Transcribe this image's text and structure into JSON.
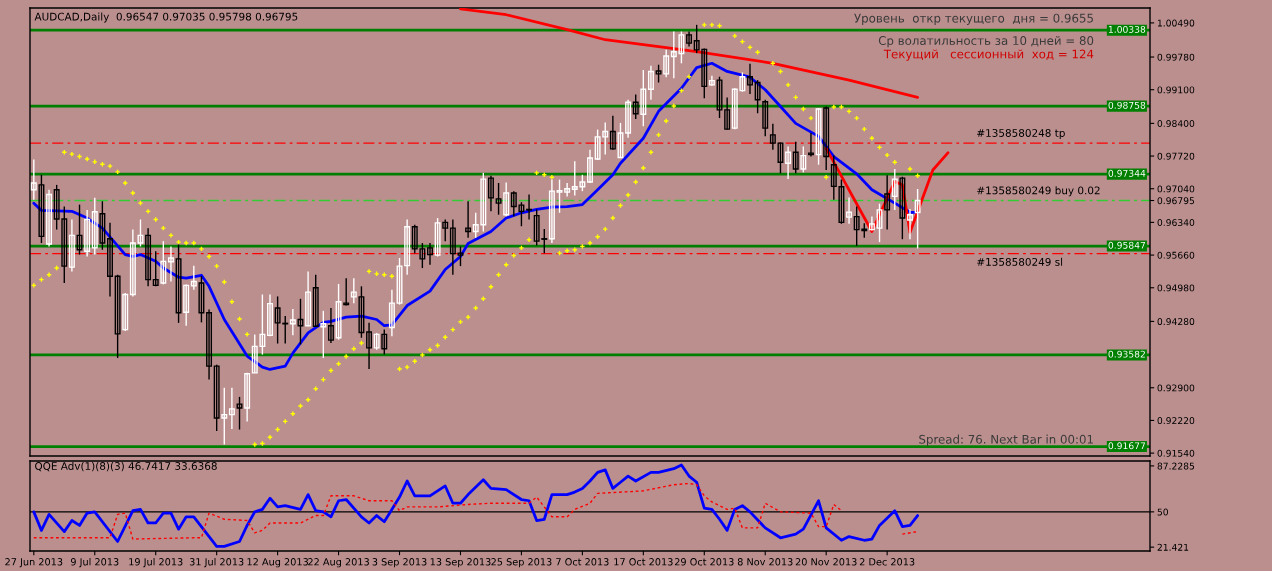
{
  "chart_data": [
    {
      "type": "candlestick",
      "title": "AUDCAD,Daily  0.96547 0.97035 0.95798 0.96795",
      "tick_labels": "y",
      "categories": [
        null,
        null,
        null,
        null,
        null,
        null,
        null,
        null,
        null,
        null,
        null,
        null,
        null,
        null,
        null,
        null,
        null,
        null,
        null,
        null,
        null,
        null,
        null,
        null,
        null,
        null,
        null,
        null,
        null,
        null,
        null,
        null,
        null,
        null,
        null,
        null,
        null,
        null,
        null,
        null,
        null,
        null,
        null,
        null,
        null,
        null,
        null,
        null,
        null,
        null,
        null,
        null,
        null,
        null,
        null,
        null,
        null,
        null,
        null,
        null,
        null,
        null,
        null,
        null,
        null,
        null,
        null,
        null,
        null,
        null,
        null,
        null,
        null,
        null,
        null,
        null,
        null,
        null,
        null,
        null,
        null,
        null,
        null,
        null,
        null,
        null,
        null,
        null,
        null,
        null,
        null,
        null,
        null,
        null,
        null,
        null,
        null,
        null,
        null,
        null,
        null,
        null,
        null,
        null,
        null,
        null,
        null,
        null,
        null,
        null,
        null,
        null,
        null,
        null,
        null,
        null,
        null,
        null,
        null,
        null,
        null,
        null,
        null,
        null,
        null,
        null,
        null,
        null,
        null,
        null,
        null,
        null,
        null,
        null,
        null,
        null,
        null,
        null,
        null,
        null,
        null,
        null,
        null,
        null,
        null,
        null,
        null
      ],
      "ohlc": [
        [
          0.9702,
          0.9765,
          0.9681,
          0.9716
        ],
        [
          0.9712,
          0.9733,
          0.9591,
          0.9605
        ],
        [
          0.9589,
          0.9702,
          0.9584,
          0.9692
        ],
        [
          0.9702,
          0.9712,
          0.9619,
          0.9641
        ],
        [
          0.9641,
          0.9667,
          0.9508,
          0.9543
        ],
        [
          0.9541,
          0.964,
          0.9532,
          0.9607
        ],
        [
          0.9607,
          0.9671,
          0.9567,
          0.9577
        ],
        [
          0.9574,
          0.966,
          0.9563,
          0.964
        ],
        [
          0.9581,
          0.9685,
          0.9567,
          0.9656
        ],
        [
          0.9652,
          0.9678,
          0.9577,
          0.9591
        ],
        [
          0.96,
          0.9633,
          0.948,
          0.9522
        ],
        [
          0.9522,
          0.9525,
          0.9352,
          0.9402
        ],
        [
          0.9411,
          0.9487,
          0.9408,
          0.9484
        ],
        [
          0.9484,
          0.9619,
          0.948,
          0.9591
        ],
        [
          0.9591,
          0.964,
          0.9584,
          0.9607
        ],
        [
          0.9607,
          0.9622,
          0.9501,
          0.9515
        ],
        [
          0.9515,
          0.9574,
          0.9501,
          0.9503
        ],
        [
          0.9508,
          0.9595,
          0.9505,
          0.9553
        ],
        [
          0.9552,
          0.9584,
          0.9511,
          0.956
        ],
        [
          0.9558,
          0.9588,
          0.9425,
          0.9446
        ],
        [
          0.9447,
          0.9505,
          0.9419,
          0.9503
        ],
        [
          0.9502,
          0.9544,
          0.9494,
          0.9511
        ],
        [
          0.9508,
          0.9522,
          0.9426,
          0.9446
        ],
        [
          0.9446,
          0.9453,
          0.9307,
          0.9335
        ],
        [
          0.9335,
          0.9338,
          0.92,
          0.9227
        ],
        [
          0.9227,
          0.929,
          0.9172,
          0.9234
        ],
        [
          0.9234,
          0.929,
          0.9204,
          0.9246
        ],
        [
          0.9256,
          0.9271,
          0.9203,
          0.9248
        ],
        [
          0.9248,
          0.9321,
          0.922,
          0.9319
        ],
        [
          0.9321,
          0.9401,
          0.9321,
          0.9376
        ],
        [
          0.9376,
          0.9484,
          0.9359,
          0.9401
        ],
        [
          0.9399,
          0.9484,
          0.9397,
          0.9465
        ],
        [
          0.9456,
          0.948,
          0.9382,
          0.9425
        ],
        [
          0.9424,
          0.9439,
          0.9382,
          0.9423
        ],
        [
          0.9423,
          0.9454,
          0.9399,
          0.9431
        ],
        [
          0.9432,
          0.9475,
          0.938,
          0.9419
        ],
        [
          0.9419,
          0.9532,
          0.9418,
          0.9489
        ],
        [
          0.9498,
          0.9525,
          0.9417,
          0.9418
        ],
        [
          0.9417,
          0.945,
          0.9352,
          0.9423
        ],
        [
          0.9419,
          0.9456,
          0.9383,
          0.9389
        ],
        [
          0.9394,
          0.9506,
          0.939,
          0.9469
        ],
        [
          0.9466,
          0.9518,
          0.9461,
          0.9463
        ],
        [
          0.9479,
          0.9518,
          0.9466,
          0.9489
        ],
        [
          0.9479,
          0.9501,
          0.9394,
          0.9405
        ],
        [
          0.9406,
          0.9425,
          0.9329,
          0.9373
        ],
        [
          0.9373,
          0.9404,
          0.9369,
          0.9401
        ],
        [
          0.9401,
          0.9411,
          0.9359,
          0.9371
        ],
        [
          0.9415,
          0.9494,
          0.9397,
          0.9466
        ],
        [
          0.9466,
          0.956,
          0.9463,
          0.9543
        ],
        [
          0.9544,
          0.964,
          0.9525,
          0.9625
        ],
        [
          0.9625,
          0.9629,
          0.957,
          0.9579
        ],
        [
          0.9579,
          0.9591,
          0.9539,
          0.9558
        ],
        [
          0.9581,
          0.9591,
          0.9546,
          0.9567
        ],
        [
          0.9566,
          0.9643,
          0.9563,
          0.9633
        ],
        [
          0.9634,
          0.964,
          0.9595,
          0.9622
        ],
        [
          0.9622,
          0.964,
          0.9525,
          0.9569
        ],
        [
          0.957,
          0.9584,
          0.9543,
          0.9566
        ],
        [
          0.9622,
          0.9678,
          0.9602,
          0.9615
        ],
        [
          0.9615,
          0.9654,
          0.9602,
          0.9629
        ],
        [
          0.9629,
          0.9737,
          0.9615,
          0.9724
        ],
        [
          0.9726,
          0.9731,
          0.9657,
          0.9685
        ],
        [
          0.9683,
          0.9716,
          0.965,
          0.9674
        ],
        [
          0.965,
          0.9717,
          0.9647,
          0.9695
        ],
        [
          0.9695,
          0.9699,
          0.9647,
          0.9667
        ],
        [
          0.967,
          0.9676,
          0.9626,
          0.9657
        ],
        [
          0.9661,
          0.9692,
          0.964,
          0.966
        ],
        [
          0.9648,
          0.9661,
          0.9586,
          0.9595
        ],
        [
          0.96,
          0.962,
          0.957,
          0.9599
        ],
        [
          0.96,
          0.9723,
          0.9591,
          0.9699
        ],
        [
          0.9697,
          0.9723,
          0.9654,
          0.97
        ],
        [
          0.9697,
          0.9716,
          0.9688,
          0.9704
        ],
        [
          0.9703,
          0.9761,
          0.969,
          0.9708
        ],
        [
          0.9708,
          0.9733,
          0.9699,
          0.9718
        ],
        [
          0.9718,
          0.9785,
          0.9716,
          0.9768
        ],
        [
          0.9766,
          0.9827,
          0.9764,
          0.9812
        ],
        [
          0.9812,
          0.9842,
          0.9775,
          0.9823
        ],
        [
          0.9823,
          0.9856,
          0.9785,
          0.9787
        ],
        [
          0.9769,
          0.9841,
          0.9768,
          0.982
        ],
        [
          0.982,
          0.9889,
          0.981,
          0.9884
        ],
        [
          0.9884,
          0.99,
          0.9849,
          0.986
        ],
        [
          0.9859,
          0.9951,
          0.9834,
          0.9911
        ],
        [
          0.9911,
          0.996,
          0.9889,
          0.9948
        ],
        [
          0.9949,
          0.9962,
          0.9925,
          0.9943
        ],
        [
          0.9943,
          0.9993,
          0.9936,
          0.998
        ],
        [
          0.9979,
          1.0031,
          0.9934,
          0.9989
        ],
        [
          0.9985,
          1.0031,
          0.9965,
          1.0024
        ],
        [
          1.0024,
          1.0031,
          1.0,
          1.0007
        ],
        [
          1.0012,
          1.0045,
          0.9986,
          0.9993
        ],
        [
          0.9994,
          0.9996,
          0.9892,
          0.9917
        ],
        [
          0.992,
          0.9939,
          0.9918,
          0.9929
        ],
        [
          0.993,
          0.9937,
          0.9851,
          0.9868
        ],
        [
          0.9868,
          0.9894,
          0.9827,
          0.9828
        ],
        [
          0.983,
          0.9913,
          0.9828,
          0.9911
        ],
        [
          0.9908,
          0.9946,
          0.9906,
          0.9937
        ],
        [
          0.9937,
          0.9964,
          0.9901,
          0.992
        ],
        [
          0.9925,
          0.993,
          0.9861,
          0.9889
        ],
        [
          0.9885,
          0.9889,
          0.9813,
          0.983
        ],
        [
          0.9816,
          0.9839,
          0.9785,
          0.9799
        ],
        [
          0.9799,
          0.98,
          0.9736,
          0.9759
        ],
        [
          0.9757,
          0.9792,
          0.9724,
          0.978
        ],
        [
          0.978,
          0.9802,
          0.9736,
          0.9745
        ],
        [
          0.9745,
          0.9792,
          0.9738,
          0.9773
        ],
        [
          0.9778,
          0.982,
          0.9771,
          0.9775
        ],
        [
          0.9775,
          0.9872,
          0.9754,
          0.987
        ],
        [
          0.9872,
          0.9875,
          0.9743,
          0.9771
        ],
        [
          0.9754,
          0.9773,
          0.9681,
          0.9709
        ],
        [
          0.9708,
          0.9723,
          0.9631,
          0.9634
        ],
        [
          0.9645,
          0.9686,
          0.9631,
          0.9655
        ],
        [
          0.9646,
          0.9667,
          0.9585,
          0.9619
        ],
        [
          0.962,
          0.9632,
          0.9602,
          0.9617
        ],
        [
          0.9619,
          0.9646,
          0.9617,
          0.9631
        ],
        [
          0.9622,
          0.9673,
          0.9593,
          0.966
        ],
        [
          0.9693,
          0.9732,
          0.9619,
          0.966
        ],
        [
          0.9688,
          0.9745,
          0.966,
          0.9724
        ],
        [
          0.9726,
          0.9729,
          0.9599,
          0.9643
        ],
        [
          0.9639,
          0.9662,
          0.9599,
          0.965
        ],
        [
          0.96547,
          0.97035,
          0.95798,
          0.96795
        ],
        null,
        null,
        null,
        null,
        null,
        null,
        null,
        null,
        null,
        null,
        null,
        null,
        null,
        null,
        null,
        null,
        null,
        null,
        null,
        null,
        null,
        null,
        null,
        null,
        null,
        null,
        null,
        null,
        null,
        null
      ],
      "series": [
        {
          "type": "line",
          "color": "#0000ff",
          "values": [
            0.9674,
            0.9659,
            null,
            null,
            null,
            0.9657,
            null,
            0.9643,
            null,
            0.9622,
            null,
            null,
            0.9567,
            0.9563,
            0.9567,
            null,
            0.9553,
            0.9539,
            null,
            0.952,
            0.9518,
            null,
            0.9524,
            0.9501,
            null,
            0.9432,
            null,
            null,
            0.9356,
            null,
            0.9333,
            0.9328,
            null,
            0.9335,
            0.9362,
            null,
            0.9404,
            null,
            0.9426,
            0.9428,
            null,
            0.9437,
            null,
            0.9439,
            null,
            0.9432,
            0.9419,
            0.9421,
            null,
            0.9461,
            null,
            null,
            0.9491,
            null,
            0.9536,
            null,
            0.9563,
            0.959,
            null,
            null,
            0.9615,
            null,
            0.9643,
            null,
            0.9654,
            null,
            0.9661,
            null,
            0.9666,
            null,
            0.9667,
            null,
            0.9671,
            null,
            0.9702,
            null,
            0.9733,
            0.9757,
            null,
            null,
            0.9809,
            null,
            0.9865,
            null,
            null,
            0.9913,
            null,
            0.9956,
            null,
            0.9965,
            null,
            0.9948,
            null,
            null,
            0.9936,
            null,
            0.991,
            null,
            0.9875,
            null,
            0.984,
            null,
            null,
            0.9813,
            null,
            0.9771,
            null,
            null,
            0.9735,
            null,
            0.9702,
            null,
            null,
            0.9674,
            null,
            0.9655,
            0.9655,
            null,
            null,
            null,
            null,
            null,
            null,
            null,
            null,
            null,
            null,
            null,
            null,
            null,
            null,
            null,
            null,
            null,
            null,
            null,
            null,
            null,
            null,
            null,
            null,
            null,
            null,
            null,
            null,
            null,
            null
          ]
        },
        {
          "type": "line",
          "color": "#ff0000",
          "values": [
            null,
            null,
            null,
            null,
            null,
            null,
            null,
            null,
            null,
            null,
            null,
            null,
            null,
            null,
            null,
            null,
            null,
            null,
            null,
            null,
            null,
            null,
            null,
            null,
            null,
            null,
            null,
            null,
            null,
            null,
            null,
            null,
            null,
            null,
            null,
            null,
            null,
            null,
            null,
            null,
            null,
            null,
            null,
            null,
            null,
            null,
            null,
            null,
            null,
            null,
            null,
            null,
            null,
            null,
            null,
            null,
            1.0078,
            null,
            null,
            null,
            null,
            null,
            1.0066,
            null,
            null,
            null,
            null,
            null,
            null,
            null,
            1.0035,
            null,
            null,
            null,
            null,
            1.0014,
            null,
            1.001,
            null,
            null,
            null,
            null,
            null,
            null,
            null,
            null,
            null,
            0.9989,
            null,
            null,
            null,
            null,
            null,
            null,
            null,
            null,
            null,
            0.9965,
            null,
            null,
            null,
            null,
            null,
            null,
            null,
            null,
            null,
            0.993,
            null,
            null,
            null,
            null,
            null,
            null,
            null,
            null,
            0.9894,
            null,
            null,
            null,
            null,
            null,
            null,
            null,
            null,
            null,
            null,
            null,
            null,
            null,
            null,
            null,
            null,
            null,
            null,
            null,
            null,
            null,
            null,
            null,
            null,
            null,
            null,
            null,
            null,
            null,
            null
          ]
        },
        {
          "type": "line",
          "color": "#ff0000",
          "values": [
            null,
            null,
            null,
            null,
            null,
            null,
            null,
            null,
            null,
            null,
            null,
            null,
            null,
            null,
            null,
            null,
            null,
            null,
            null,
            null,
            null,
            null,
            null,
            null,
            null,
            null,
            null,
            null,
            null,
            null,
            null,
            null,
            null,
            null,
            null,
            null,
            null,
            null,
            null,
            null,
            null,
            null,
            null,
            null,
            null,
            null,
            null,
            null,
            null,
            null,
            null,
            null,
            null,
            null,
            null,
            null,
            null,
            null,
            null,
            null,
            null,
            null,
            null,
            null,
            null,
            null,
            null,
            null,
            null,
            null,
            null,
            null,
            null,
            null,
            null,
            null,
            null,
            null,
            null,
            null,
            null,
            null,
            null,
            null,
            null,
            null,
            null,
            null,
            null,
            null,
            null,
            null,
            null,
            null,
            null,
            null,
            null,
            null,
            null,
            null,
            null,
            null,
            null,
            null,
            0.9788,
            null,
            null,
            null,
            null,
            null,
            0.9615,
            null,
            null,
            0.9719,
            0.9712,
            0.9613,
            null,
            null,
            0.9743,
            null,
            0.9779,
            null,
            null,
            null,
            null,
            null,
            null,
            null,
            null,
            null,
            null,
            null,
            null,
            null,
            null,
            null,
            null,
            null,
            null,
            null,
            null,
            null,
            null,
            null,
            null,
            null,
            null
          ]
        },
        {
          "type": "scatter",
          "color": "#ffff00",
          "marker": "cross",
          "values": [
            0.9503,
            0.9515,
            0.9525,
            0.9539,
            0.978,
            0.9776,
            0.9771,
            0.9766,
            0.976,
            0.9755,
            0.9751,
            0.9739,
            0.9716,
            0.9695,
            0.9674,
            0.9657,
            0.964,
            0.9622,
            0.9607,
            0.9593,
            0.9591,
            0.9591,
            0.9579,
            0.9563,
            0.9543,
            0.951,
            0.9469,
            0.9433,
            0.9401,
            0.9172,
            0.9174,
            0.9187,
            0.9203,
            0.922,
            0.9236,
            0.9252,
            0.9265,
            0.9288,
            0.9307,
            0.9326,
            0.934,
            0.9355,
            0.9371,
            0.9383,
            0.9532,
            0.9527,
            0.9525,
            0.9522,
            0.9329,
            0.9333,
            0.9345,
            0.9358,
            0.9369,
            0.9378,
            0.9395,
            0.9411,
            0.9427,
            0.9437,
            0.9456,
            0.9475,
            0.95,
            0.9525,
            0.9546,
            0.9565,
            0.9581,
            0.9598,
            0.9737,
            0.9733,
            0.9728,
            0.957,
            0.9575,
            0.9577,
            0.9584,
            0.9591,
            0.9604,
            0.962,
            0.9643,
            0.9669,
            0.9691,
            0.9718,
            0.9747,
            0.978,
            0.9816,
            0.9845,
            0.9876,
            0.9908,
            0.9937,
            null,
            1.0045,
            1.0045,
            1.0043,
            null,
            1.0022,
            1.001,
            0.9998,
            0.9988,
            null,
            0.9965,
            0.9948,
            0.992,
            0.9894,
            0.987,
            0.9851,
            null,
            0.9728,
            0.9874,
            0.9874,
            0.9865,
            0.9851,
            0.9828,
            0.9809,
            0.979,
            0.9774,
            0.9759,
            null,
            0.9745,
            0.9731,
            null,
            null,
            null,
            null,
            null,
            null,
            null,
            null,
            null,
            null,
            null,
            null,
            null,
            null,
            null,
            null,
            null,
            null,
            null,
            null,
            null,
            null,
            null,
            null,
            null,
            null,
            null,
            null,
            null,
            null
          ]
        }
      ],
      "ref_lines": [
        {
          "axis": "y",
          "value": 1.00338,
          "label": "1.00338",
          "color": "#008000"
        },
        {
          "axis": "y",
          "value": 0.98758,
          "label": "0.98758",
          "color": "#008000"
        },
        {
          "axis": "y",
          "value": 0.97344,
          "label": "0.97344",
          "color": "#008000"
        },
        {
          "axis": "y",
          "value": 0.95847,
          "label": "0.95847",
          "color": "#008000"
        },
        {
          "axis": "y",
          "value": 0.93582,
          "label": "0.93582",
          "color": "#008000"
        },
        {
          "axis": "y",
          "value": 0.91677,
          "label": "0.91677",
          "color": "#008000"
        },
        {
          "axis": "y",
          "value": 0.9799,
          "label": "#1358580248 tp",
          "color": "#ff0000",
          "line_style": "dashed"
        },
        {
          "axis": "y",
          "value": 0.96795,
          "label": "#1358580249 buy 0.02",
          "color": "#32cd32",
          "line_style": "dashed"
        },
        {
          "axis": "y",
          "value": 0.9569,
          "label": "#1358580249 sl",
          "color": "#ff0000",
          "line_style": "dashed"
        }
      ],
      "annotations": [
        "Уровень  откр текущего  дня = 0.9655",
        "Ср волатильность за 10 дней = 80",
        "Текущий   сессионный  ход = 124",
        "Spread: 76. Next Bar in 00:01"
      ],
      "ylim": [
        0.9148,
        1.008
      ],
      "yticks": [
        {
          "value": 1.0049,
          "label": "1.00490"
        },
        {
          "value": 0.9978,
          "label": "0.99780"
        },
        {
          "value": 0.991,
          "label": "0.99100"
        },
        {
          "value": 0.984,
          "label": "0.98400"
        },
        {
          "value": 0.9772,
          "label": "0.97720"
        },
        {
          "value": 0.9704,
          "label": "0.97040"
        },
        0.96795,
        {
          "value": 0.9634,
          "label": "0.96340"
        },
        {
          "value": 0.9566,
          "label": "0.95660"
        },
        {
          "value": 0.9498,
          "label": "0.94980"
        },
        {
          "value": 0.9428,
          "label": "0.94280"
        },
        {
          "value": 0.929,
          "label": "0.92900"
        },
        {
          "value": 0.9222,
          "label": "0.92220"
        },
        {
          "value": 0.9154,
          "label": "0.91540"
        }
      ]
    },
    {
      "type": "line",
      "title": "QQE Adv(1)(8)(3) 46.7417 33.6368",
      "categories": [
        "27 Jun 2013",
        null,
        null,
        null,
        null,
        null,
        null,
        null,
        "9 Jul 2013",
        null,
        null,
        null,
        null,
        null,
        null,
        null,
        "19 Jul 2013",
        null,
        null,
        null,
        null,
        null,
        null,
        null,
        "31 Jul 2013",
        null,
        null,
        null,
        null,
        null,
        null,
        null,
        "12 Aug 2013",
        null,
        null,
        null,
        null,
        null,
        null,
        null,
        "22 Aug 2013",
        null,
        null,
        null,
        null,
        null,
        null,
        null,
        "3 Sep 2013",
        null,
        null,
        null,
        null,
        null,
        null,
        null,
        "13 Sep 2013",
        null,
        null,
        null,
        null,
        null,
        null,
        null,
        "25 Sep 2013",
        null,
        null,
        null,
        null,
        null,
        null,
        null,
        "7 Oct 2013",
        null,
        null,
        null,
        null,
        null,
        null,
        null,
        "17 Oct 2013",
        null,
        null,
        null,
        null,
        null,
        null,
        null,
        "29 Oct 2013",
        null,
        null,
        null,
        null,
        null,
        null,
        null,
        "8 Nov 2013",
        null,
        null,
        null,
        null,
        null,
        null,
        null,
        "20 Nov 2013",
        null,
        null,
        null,
        null,
        null,
        null,
        null,
        "2 Dec 2013",
        null,
        null,
        null,
        null,
        null,
        null,
        null,
        null,
        null,
        null,
        null,
        null,
        null,
        null,
        null,
        null,
        null,
        null,
        null,
        null,
        null,
        null,
        null,
        null,
        null,
        null,
        null,
        null,
        null,
        null,
        null,
        null,
        null,
        null
      ],
      "series": [
        {
          "color": "#0000ff",
          "values": [
            50,
            35,
            48,
            null,
            34,
            43,
            39,
            49,
            50,
            null,
            null,
            26,
            null,
            51,
            52,
            41,
            41,
            49,
            49,
            36,
            46,
            46,
            null,
            null,
            22,
            22,
            null,
            26,
            39,
            50,
            52,
            61,
            54,
            55,
            null,
            52,
            64,
            51,
            50,
            46,
            59,
            60,
            null,
            46,
            41,
            47,
            42,
            null,
            62,
            75,
            63,
            null,
            63,
            null,
            71,
            57,
            57,
            64,
            null,
            76,
            69,
            null,
            68,
            null,
            60,
            59,
            43,
            44,
            64,
            null,
            64,
            66,
            69,
            75,
            82,
            84,
            69,
            74,
            79,
            75,
            null,
            82,
            82,
            null,
            85,
            88,
            79,
            74,
            53,
            52,
            44,
            35,
            52,
            55,
            50,
            null,
            37,
            null,
            29,
            null,
            32,
            36,
            null,
            59,
            37,
            null,
            27,
            30,
            null,
            27,
            28,
            39,
            null,
            51,
            38,
            39,
            47,
            null,
            null,
            null,
            null,
            null,
            null,
            null,
            null,
            null,
            null,
            null,
            null,
            null,
            null,
            null,
            null,
            null,
            null,
            null,
            null,
            null,
            null,
            null,
            null,
            null,
            null,
            null,
            null,
            null,
            null
          ]
        },
        {
          "color": "#ff0000",
          "line_style": "dotted",
          "values": [
            29,
            null,
            null,
            null,
            null,
            null,
            null,
            null,
            null,
            null,
            29,
            48,
            49,
            28,
            null,
            null,
            null,
            null,
            null,
            null,
            null,
            29,
            29,
            49,
            null,
            44,
            null,
            null,
            43,
            33,
            35,
            41,
            null,
            null,
            null,
            41,
            null,
            47,
            47,
            63,
            null,
            null,
            63,
            null,
            59,
            null,
            null,
            59,
            51,
            54,
            null,
            null,
            null,
            54,
            null,
            null,
            null,
            56,
            null,
            null,
            57,
            null,
            null,
            null,
            null,
            57,
            62,
            null,
            46,
            null,
            46,
            52,
            null,
            57,
            65,
            null,
            null,
            null,
            null,
            null,
            67,
            null,
            null,
            null,
            72,
            null,
            73,
            72,
            63,
            58,
            null,
            52,
            53,
            37,
            null,
            37,
            57,
            null,
            50,
            null,
            null,
            null,
            49,
            38,
            38,
            56,
            51,
            null,
            null,
            null,
            null,
            null,
            null,
            null,
            null,
            null,
            null,
            null,
            null,
            null,
            null,
            null,
            null,
            null,
            null,
            null,
            null,
            null,
            null,
            null,
            null,
            null,
            null,
            null,
            null,
            null,
            null,
            null,
            null,
            null,
            null,
            null,
            null,
            null,
            null,
            null,
            null
          ]
        },
        {
          "color": "#ff0000",
          "line_style": "dotted",
          "values": [
            null,
            null,
            null,
            null,
            null,
            null,
            null,
            null,
            null,
            null,
            null,
            null,
            null,
            null,
            null,
            null,
            null,
            null,
            null,
            null,
            null,
            null,
            null,
            null,
            null,
            null,
            null,
            null,
            null,
            null,
            null,
            null,
            null,
            null,
            null,
            null,
            null,
            null,
            null,
            null,
            null,
            null,
            null,
            null,
            null,
            null,
            null,
            null,
            null,
            null,
            null,
            null,
            null,
            null,
            null,
            null,
            null,
            null,
            null,
            null,
            null,
            null,
            null,
            null,
            null,
            null,
            null,
            null,
            null,
            null,
            null,
            null,
            null,
            null,
            null,
            null,
            null,
            null,
            null,
            null,
            null,
            null,
            null,
            null,
            null,
            null,
            null,
            null,
            null,
            null,
            null,
            null,
            null,
            null,
            null,
            null,
            null,
            null,
            null,
            null,
            null,
            null,
            null,
            null,
            null,
            null,
            null,
            null,
            null,
            null,
            null,
            null,
            null,
            null,
            32,
            null,
            34,
            null,
            null,
            null,
            null,
            null,
            null,
            null,
            null,
            null,
            null,
            null,
            null,
            null,
            null,
            null,
            null,
            null,
            null,
            null,
            null,
            null,
            null,
            null,
            null,
            null,
            null,
            null,
            null,
            null,
            null
          ]
        }
      ],
      "ref_lines": [
        {
          "axis": "y",
          "value": 50,
          "color": "#000000"
        }
      ],
      "ylim": [
        18.3,
        91.2
      ],
      "yticks": [
        87.2285,
        50,
        21.421
      ]
    }
  ]
}
